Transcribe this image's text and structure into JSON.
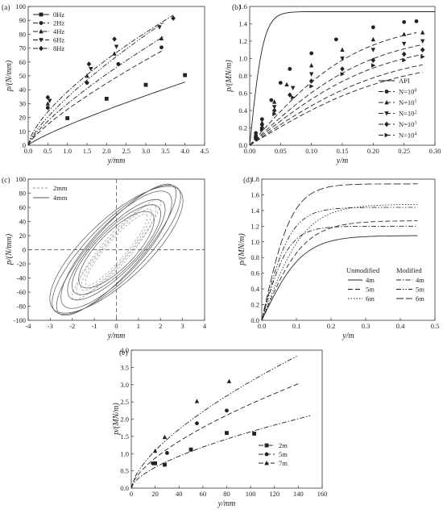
{
  "figure": {
    "panels": [
      {
        "id": "a",
        "label": "(a)",
        "xlabel": "y/mm",
        "ylabel": "p/(N/mm)",
        "xlim": [
          0,
          4.5
        ],
        "ylim": [
          0,
          100
        ],
        "xticks": [
          "0.0",
          "0.5",
          "1.0",
          "1.5",
          "2.0",
          "2.5",
          "3.0",
          "3.5",
          "4.0",
          "4.5"
        ],
        "yticks": [
          "0",
          "10",
          "20",
          "30",
          "40",
          "50",
          "60",
          "70",
          "80",
          "90",
          "100"
        ],
        "legend": [
          "0Hz",
          "2Hz",
          "4Hz",
          "6Hz",
          "8Hz"
        ],
        "legend_position": "top-left"
      },
      {
        "id": "b",
        "label": "(b)",
        "xlabel": "y/m",
        "ylabel": "p/(MN/m)",
        "xlim": [
          0,
          0.3
        ],
        "ylim": [
          0,
          1.6
        ],
        "xticks": [
          "0.00",
          "0.05",
          "0.10",
          "0.15",
          "0.20",
          "0.25",
          "0.30"
        ],
        "yticks": [
          "0.0",
          "0.2",
          "0.4",
          "0.6",
          "0.8",
          "1.0",
          "1.2",
          "1.4",
          "1.6"
        ],
        "legend": [
          "API",
          "N=10^0",
          "N=10^1",
          "N=10^2",
          "N=10^3",
          "N=10^4"
        ],
        "legend_position": "bottom-right"
      },
      {
        "id": "c",
        "label": "(c)",
        "xlabel": "y/mm",
        "ylabel": "p/(N/mm)",
        "xlim": [
          -4,
          4
        ],
        "ylim": [
          -100,
          100
        ],
        "xticks": [
          "-4",
          "-3",
          "-2",
          "-1",
          "0",
          "1",
          "2",
          "3",
          "4"
        ],
        "yticks": [
          "-100",
          "-80",
          "-60",
          "-40",
          "-20",
          "0",
          "20",
          "40",
          "60",
          "80",
          "100"
        ],
        "legend": [
          "2mm",
          "4mm"
        ],
        "legend_position": "top-left"
      },
      {
        "id": "d",
        "label": "(d)",
        "xlabel": "y/m",
        "ylabel": "p/(MN/m)",
        "xlim": [
          0,
          0.5
        ],
        "ylim": [
          0,
          1.8
        ],
        "xticks": [
          "0.0",
          "0.1",
          "0.2",
          "0.3",
          "0.4",
          "0.5"
        ],
        "yticks": [
          "0.0",
          "0.2",
          "0.4",
          "0.6",
          "0.8",
          "1.0",
          "1.2",
          "1.4",
          "1.6",
          "1.8"
        ],
        "legend_headers": [
          "Unmodified",
          "Modified"
        ],
        "legend": [
          "4m",
          "5m",
          "6m"
        ],
        "legend_position": "bottom-right"
      },
      {
        "id": "e",
        "label": "(e)",
        "xlabel": "y/mm",
        "ylabel": "p/(MN/m)",
        "xlim": [
          0,
          160
        ],
        "ylim": [
          0,
          4.0
        ],
        "xticks": [
          "0",
          "20",
          "40",
          "60",
          "80",
          "100",
          "120",
          "140",
          "160"
        ],
        "yticks": [
          "0.0",
          "0.5",
          "1.0",
          "1.5",
          "2.0",
          "2.5",
          "3.0",
          "3.5",
          "4.0"
        ],
        "legend": [
          "2m",
          "5m",
          "7m"
        ],
        "legend_position": "bottom-right"
      }
    ]
  },
  "chart_data": [
    {
      "panel": "a",
      "type": "line",
      "xlim": [
        0,
        4.5
      ],
      "ylim": [
        0,
        100
      ],
      "series": [
        {
          "name": "0Hz",
          "curve": {
            "a": 14.2,
            "b": 0.84,
            "xmax": 4.0
          },
          "points": [
            [
              1.0,
              19.5
            ],
            [
              2.0,
              33.5
            ],
            [
              3.0,
              43.5
            ],
            [
              4.0,
              50.5
            ]
          ]
        },
        {
          "name": "2Hz",
          "curve": {
            "a": 25.8,
            "b": 0.79,
            "xmax": 3.45
          },
          "points": [
            [
              0.5,
              27
            ],
            [
              1.5,
              45
            ],
            [
              2.3,
              58.5
            ],
            [
              3.4,
              70.5
            ]
          ]
        },
        {
          "name": "4Hz",
          "curve": {
            "a": 29.8,
            "b": 0.78,
            "xmax": 3.45
          },
          "points": [
            [
              0.5,
              30
            ],
            [
              1.5,
              50
            ],
            [
              2.2,
              66
            ],
            [
              3.4,
              77
            ]
          ]
        },
        {
          "name": "6Hz",
          "curve": {
            "a": 34.5,
            "b": 0.76,
            "xmax": 3.45
          },
          "points": [
            [
              0.55,
              32
            ],
            [
              1.6,
              55
            ],
            [
              2.25,
              71
            ],
            [
              3.35,
              85
            ]
          ]
        },
        {
          "name": "8Hz",
          "curve": {
            "a": 38.5,
            "b": 0.68,
            "xmax": 3.7
          },
          "points": [
            [
              0.5,
              34.5
            ],
            [
              1.55,
              58.5
            ],
            [
              2.2,
              76.5
            ],
            [
              3.7,
              91.5
            ]
          ]
        }
      ]
    },
    {
      "panel": "b",
      "type": "line",
      "xlim": [
        0,
        0.3
      ],
      "ylim": [
        0,
        1.6
      ],
      "series": [
        {
          "name": "API",
          "curve": {
            "pu": 1.54,
            "k": 45,
            "xmax": 0.3
          },
          "points": []
        },
        {
          "name": "N=10^0",
          "curve": {
            "pu": 1.43,
            "k": 5.6,
            "xmax": 0.27
          },
          "points": [
            [
              0.01,
              0.14
            ],
            [
              0.02,
              0.3
            ],
            [
              0.035,
              0.52
            ],
            [
              0.05,
              0.72
            ],
            [
              0.065,
              0.88
            ],
            [
              0.1,
              1.06
            ],
            [
              0.14,
              1.22
            ],
            [
              0.2,
              1.36
            ],
            [
              0.25,
              1.42
            ],
            [
              0.27,
              1.43
            ]
          ]
        },
        {
          "name": "N=10^1",
          "curve": {
            "pu": 1.31,
            "k": 5.0,
            "xmax": 0.28
          },
          "points": [
            [
              0.01,
              0.12
            ],
            [
              0.02,
              0.26
            ],
            [
              0.04,
              0.5
            ],
            [
              0.06,
              0.7
            ],
            [
              0.1,
              0.92
            ],
            [
              0.15,
              1.1
            ],
            [
              0.2,
              1.22
            ],
            [
              0.25,
              1.28
            ],
            [
              0.28,
              1.3
            ]
          ]
        },
        {
          "name": "N=10^2",
          "curve": {
            "pu": 1.21,
            "k": 4.7,
            "xmax": 0.28
          },
          "points": [
            [
              0.01,
              0.1
            ],
            [
              0.02,
              0.22
            ],
            [
              0.04,
              0.44
            ],
            [
              0.07,
              0.66
            ],
            [
              0.1,
              0.82
            ],
            [
              0.15,
              1.0
            ],
            [
              0.2,
              1.1
            ],
            [
              0.25,
              1.17
            ],
            [
              0.28,
              1.2
            ]
          ]
        },
        {
          "name": "N=10^3",
          "curve": {
            "pu": 1.1,
            "k": 4.4,
            "xmax": 0.28
          },
          "points": [
            [
              0.01,
              0.09
            ],
            [
              0.02,
              0.2
            ],
            [
              0.04,
              0.4
            ],
            [
              0.065,
              0.58
            ],
            [
              0.1,
              0.74
            ],
            [
              0.15,
              0.88
            ],
            [
              0.2,
              0.98
            ],
            [
              0.25,
              1.05
            ],
            [
              0.28,
              1.1
            ]
          ]
        },
        {
          "name": "N=10^4",
          "curve": {
            "pu": 1.02,
            "k": 4.2,
            "xmax": 0.28
          },
          "points": [
            [
              0.01,
              0.08
            ],
            [
              0.02,
              0.18
            ],
            [
              0.04,
              0.36
            ],
            [
              0.07,
              0.55
            ],
            [
              0.1,
              0.68
            ],
            [
              0.15,
              0.82
            ],
            [
              0.2,
              0.92
            ],
            [
              0.25,
              0.98
            ],
            [
              0.28,
              1.02
            ]
          ]
        }
      ]
    },
    {
      "panel": "c",
      "type": "line",
      "xlim": [
        -4,
        4
      ],
      "ylim": [
        -100,
        100
      ],
      "series": [
        {
          "name": "2mm",
          "loops": [
            [
              1.6,
              55,
              0.55,
              14
            ],
            [
              1.8,
              60,
              0.6,
              18
            ],
            [
              2.0,
              68,
              0.5,
              16
            ],
            [
              1.4,
              48,
              0.45,
              12
            ]
          ]
        },
        {
          "name": "4mm",
          "loops": [
            [
              2.9,
              80,
              1.0,
              28
            ],
            [
              2.5,
              72,
              0.9,
              26
            ],
            [
              2.2,
              62,
              0.85,
              22
            ],
            [
              2.0,
              55,
              0.8,
              20
            ],
            [
              3.0,
              76,
              1.2,
              30
            ],
            [
              1.7,
              46,
              0.7,
              18
            ],
            [
              2.7,
              84,
              0.9,
              25
            ]
          ]
        }
      ]
    },
    {
      "panel": "d",
      "type": "line",
      "xlim": [
        0,
        0.5
      ],
      "ylim": [
        0,
        1.8
      ],
      "series": [
        {
          "name": "Unmodified 4m",
          "curve": {
            "pu": 1.08,
            "k": 8.5,
            "xmax": 0.45
          }
        },
        {
          "name": "Unmodified 5m",
          "curve": {
            "pu": 1.27,
            "k": 8.2,
            "xmax": 0.45
          }
        },
        {
          "name": "Unmodified 6m",
          "curve": {
            "pu": 1.48,
            "k": 8.0,
            "xmax": 0.45
          }
        },
        {
          "name": "Modified 4m",
          "curve": {
            "pu": 1.2,
            "k": 13,
            "xmax": 0.45
          }
        },
        {
          "name": "Modified 5m",
          "curve": {
            "pu": 1.44,
            "k": 12,
            "xmax": 0.45
          }
        },
        {
          "name": "Modified 6m",
          "curve": {
            "pu": 1.74,
            "k": 11.5,
            "xmax": 0.45
          }
        }
      ]
    },
    {
      "panel": "e",
      "type": "line",
      "xlim": [
        0,
        160
      ],
      "ylim": [
        0,
        4.0
      ],
      "series": [
        {
          "name": "2m",
          "curve": {
            "a": 0.094,
            "b": 0.62,
            "xmax": 150
          },
          "points": [
            [
              20,
              0.72
            ],
            [
              28,
              0.68
            ],
            [
              50,
              1.12
            ],
            [
              80,
              1.6
            ],
            [
              103,
              1.58
            ]
          ]
        },
        {
          "name": "5m",
          "curve": {
            "a": 0.128,
            "b": 0.64,
            "xmax": 140
          },
          "points": [
            [
              18,
              0.72
            ],
            [
              30,
              1.02
            ],
            [
              55,
              1.88
            ],
            [
              80,
              2.25
            ]
          ]
        },
        {
          "name": "7m",
          "curve": {
            "a": 0.155,
            "b": 0.65,
            "xmax": 140
          },
          "points": [
            [
              20,
              1.08
            ],
            [
              28,
              1.48
            ],
            [
              55,
              2.52
            ],
            [
              82,
              3.1
            ]
          ]
        }
      ]
    }
  ]
}
